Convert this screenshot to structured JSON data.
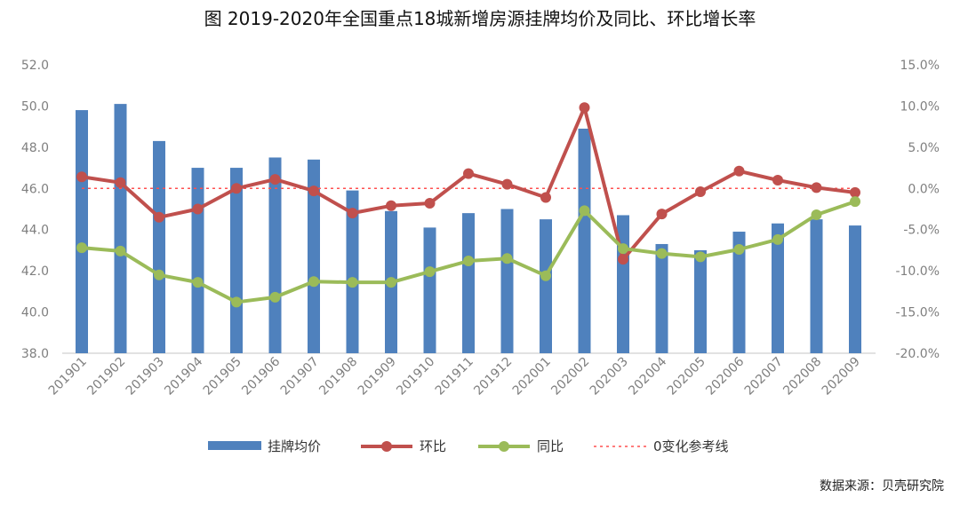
{
  "chart_data": {
    "type": "bar+line",
    "title": "图 2019-2020年全国重点18城新增房源挂牌均价及同比、环比增长率",
    "categories": [
      "201901",
      "201902",
      "201903",
      "201904",
      "201905",
      "201906",
      "201907",
      "201908",
      "201909",
      "201910",
      "201911",
      "201912",
      "202001",
      "202002",
      "202003",
      "202004",
      "202005",
      "202006",
      "202007",
      "202008",
      "202009"
    ],
    "y_left": {
      "range": [
        38,
        52
      ],
      "ticks": [
        "38.0",
        "40.0",
        "42.0",
        "44.0",
        "46.0",
        "48.0",
        "50.0",
        "52.0"
      ]
    },
    "y_right": {
      "range": [
        -20,
        15
      ],
      "unit": "%",
      "ticks": [
        "-20.0%",
        "-15.0%",
        "-10.0%",
        "-5.0%",
        "0.0%",
        "5.0%",
        "10.0%",
        "15.0%"
      ]
    },
    "series": [
      {
        "name": "挂牌均价",
        "type": "bar",
        "axis": "left",
        "color": "#4f81bd",
        "values": [
          49.8,
          50.1,
          48.3,
          47.0,
          47.0,
          47.5,
          47.4,
          45.9,
          44.9,
          44.1,
          44.8,
          45.0,
          44.5,
          48.9,
          44.7,
          43.3,
          43.0,
          43.9,
          44.3,
          44.5,
          44.2
        ]
      },
      {
        "name": "环比",
        "type": "line",
        "axis": "right",
        "color": "#c0504d",
        "values": [
          1.4,
          0.7,
          -3.5,
          -2.5,
          0.0,
          1.1,
          -0.3,
          -3.0,
          -2.1,
          -1.8,
          1.8,
          0.5,
          -1.1,
          9.8,
          -8.6,
          -3.1,
          -0.4,
          2.1,
          1.0,
          0.1,
          -0.5
        ]
      },
      {
        "name": "同比",
        "type": "line",
        "axis": "right",
        "color": "#9bbb59",
        "values": [
          -7.2,
          -7.6,
          -10.5,
          -11.4,
          -13.8,
          -13.2,
          -11.3,
          -11.4,
          -11.4,
          -10.1,
          -8.8,
          -8.5,
          -10.6,
          -2.7,
          -7.3,
          -7.9,
          -8.3,
          -7.4,
          -6.2,
          -3.2,
          -1.6
        ]
      },
      {
        "name": "0变化参考线",
        "type": "reference",
        "axis": "right",
        "color": "#ff5050",
        "value": 0
      }
    ],
    "legend_position": "bottom",
    "source": "数据来源：贝壳研究院"
  }
}
